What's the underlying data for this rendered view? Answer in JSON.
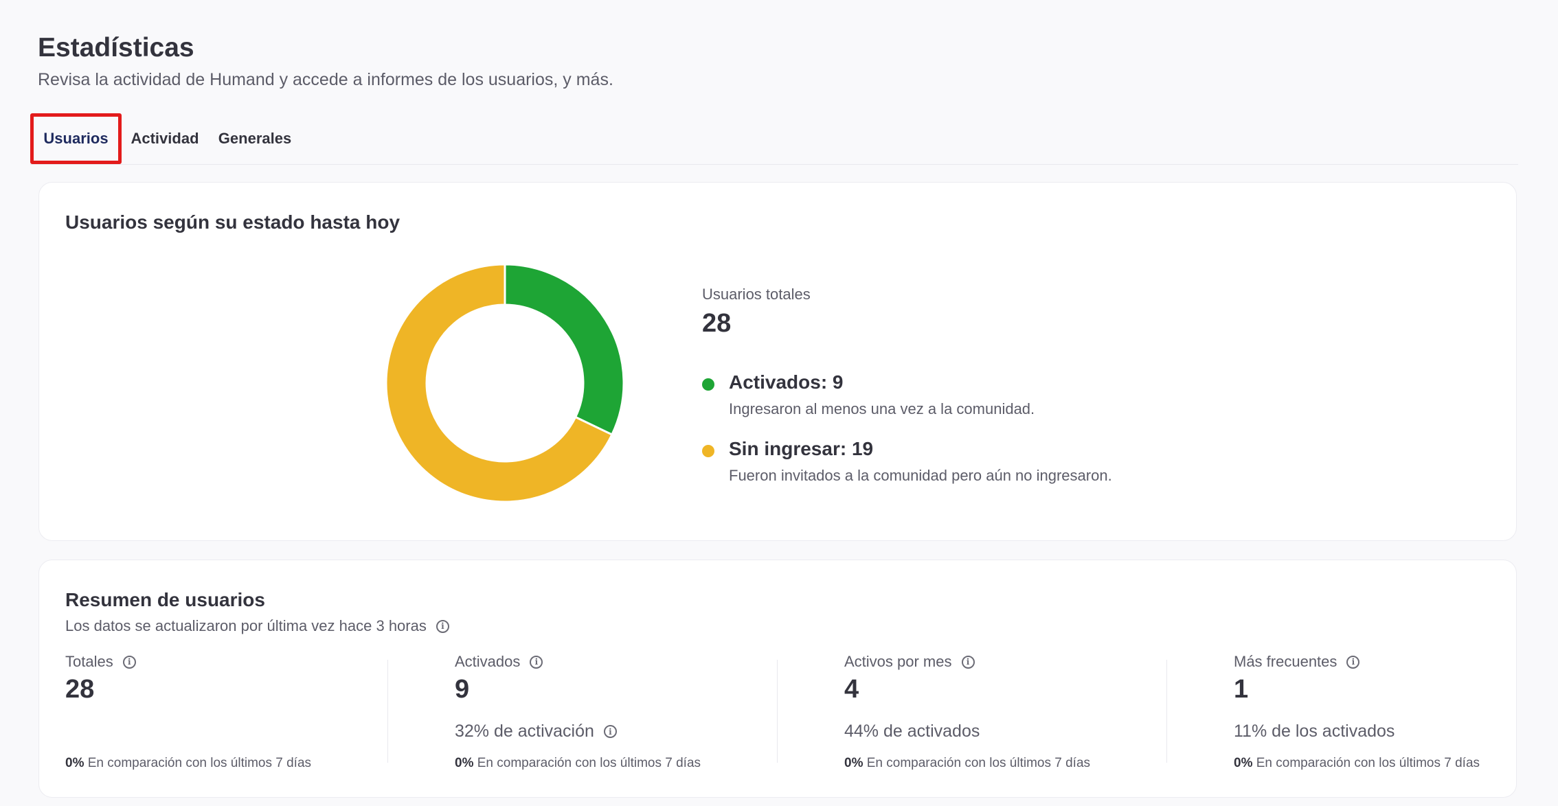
{
  "header": {
    "title": "Estadísticas",
    "subtitle": "Revisa la actividad de Humand y accede a informes de los usuarios, y más."
  },
  "tabs": [
    {
      "label": "Usuarios",
      "active": true
    },
    {
      "label": "Actividad",
      "active": false
    },
    {
      "label": "Generales",
      "active": false
    }
  ],
  "status_card": {
    "title": "Usuarios según su estado hasta hoy",
    "total_label": "Usuarios totales",
    "total_value": "28",
    "legend": [
      {
        "title": "Activados: 9",
        "description": "Ingresaron al menos una vez a la comunidad.",
        "color": "#1ea535"
      },
      {
        "title": "Sin ingresar: 19",
        "description": "Fueron invitados a la comunidad pero aún no ingresaron.",
        "color": "#efb526"
      }
    ],
    "chart_data": {
      "type": "pie",
      "categories": [
        "Activados",
        "Sin ingresar"
      ],
      "values": [
        9,
        19
      ],
      "colors": [
        "#1ea535",
        "#efb526"
      ],
      "donut": true
    }
  },
  "summary_card": {
    "title": "Resumen de usuarios",
    "note": "Los datos se actualizaron por última vez hace 3 horas",
    "metrics": [
      {
        "label": "Totales",
        "value": "28",
        "sub": "",
        "compare_pct": "0%",
        "compare_text": " En comparación con los últimos 7 días"
      },
      {
        "label": "Activados",
        "value": "9",
        "sub": "32% de activación",
        "compare_pct": "0%",
        "compare_text": " En comparación con los últimos 7 días"
      },
      {
        "label": "Activos por mes",
        "value": "4",
        "sub": "44% de activados",
        "compare_pct": "0%",
        "compare_text": " En comparación con los últimos 7 días"
      },
      {
        "label": "Más frecuentes",
        "value": "1",
        "sub": "11% de los activados",
        "compare_pct": "0%",
        "compare_text": " En comparación con los últimos 7 días"
      }
    ]
  }
}
